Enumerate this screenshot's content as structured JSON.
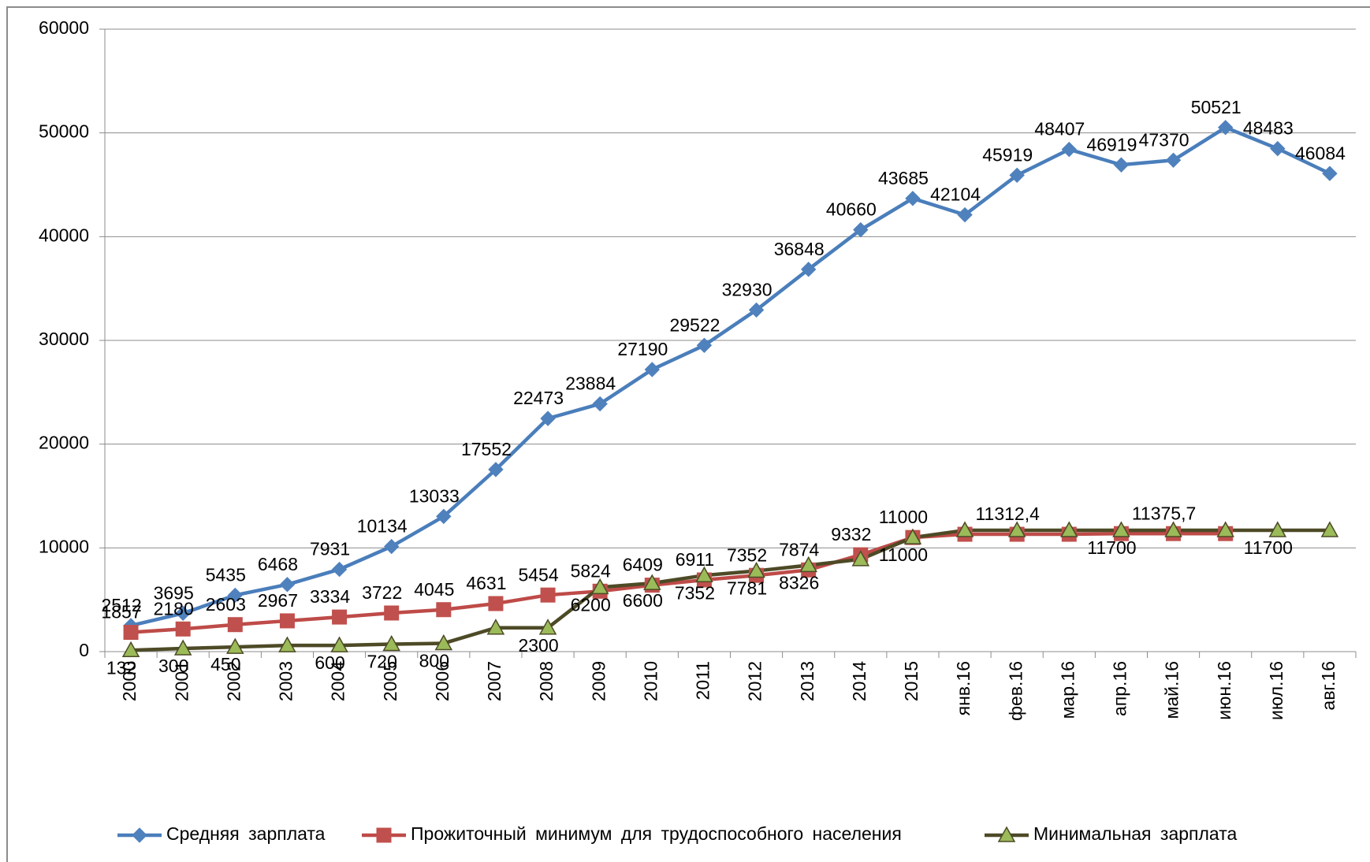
{
  "chart_data": {
    "type": "line",
    "categories": [
      "2000",
      "2001",
      "2002",
      "2003",
      "2004",
      "2005",
      "2006",
      "2007",
      "2008",
      "2009",
      "2010",
      "2011",
      "2012",
      "2013",
      "2014",
      "2015",
      "янв.16",
      "фев.16",
      "мар.16",
      "апр.16",
      "май.16",
      "июн.16",
      "июл.16",
      "авг.16"
    ],
    "ylim": [
      0,
      60000
    ],
    "yticks": [
      0,
      10000,
      20000,
      30000,
      40000,
      50000,
      60000
    ],
    "grid": true,
    "legend": "bottom",
    "series": [
      {
        "name": "Средняя зарплата",
        "color": "#4a7ebb",
        "marker": "diamond",
        "marker_color": "#4f81bd",
        "values": [
          2512,
          3695,
          5435,
          6468,
          7931,
          10134,
          13033,
          17552,
          22473,
          23884,
          27190,
          29522,
          32930,
          36848,
          40660,
          43685,
          42104,
          45919,
          48407,
          46919,
          47370,
          50521,
          48483,
          46084
        ]
      },
      {
        "name": "Прожиточный минимум для трудоспособного населения",
        "color": "#be4b48",
        "marker": "square",
        "marker_color": "#c0504d",
        "values": [
          1857,
          2180,
          2603,
          2967,
          3334,
          3722,
          4045,
          4631,
          5454,
          5824,
          6409,
          6911,
          7352,
          7874,
          9332,
          11000,
          11312.4,
          11312.4,
          11312.4,
          11375.7,
          11375.7,
          11375.7,
          null,
          null
        ],
        "value_labels": [
          "1857",
          "2180",
          "2603",
          "2967",
          "3334",
          "3722",
          "4045",
          "4631",
          "5454",
          "5824",
          "6409",
          "6911",
          "7352",
          "7874",
          "9332",
          "11000",
          null,
          "11312,4",
          null,
          null,
          "11375,7",
          null,
          null,
          null
        ]
      },
      {
        "name": "Минимальная зарплата",
        "color": "#4d4a26",
        "marker": "triangle",
        "marker_color": "#9bbb59",
        "values": [
          132,
          300,
          450,
          600,
          600,
          720,
          800,
          2300,
          2300,
          6200,
          6600,
          7352,
          7781,
          8326,
          8900,
          11000,
          11700,
          11700,
          11700,
          11700,
          11700,
          11700,
          11700,
          11700
        ],
        "value_labels": [
          "132",
          "300",
          "450",
          null,
          "600",
          "720",
          "800",
          null,
          "2300",
          "6200",
          "6600",
          "7352",
          "7781",
          "8326",
          null,
          "11000",
          null,
          null,
          null,
          "11700",
          null,
          null,
          "11700",
          null
        ]
      }
    ]
  }
}
